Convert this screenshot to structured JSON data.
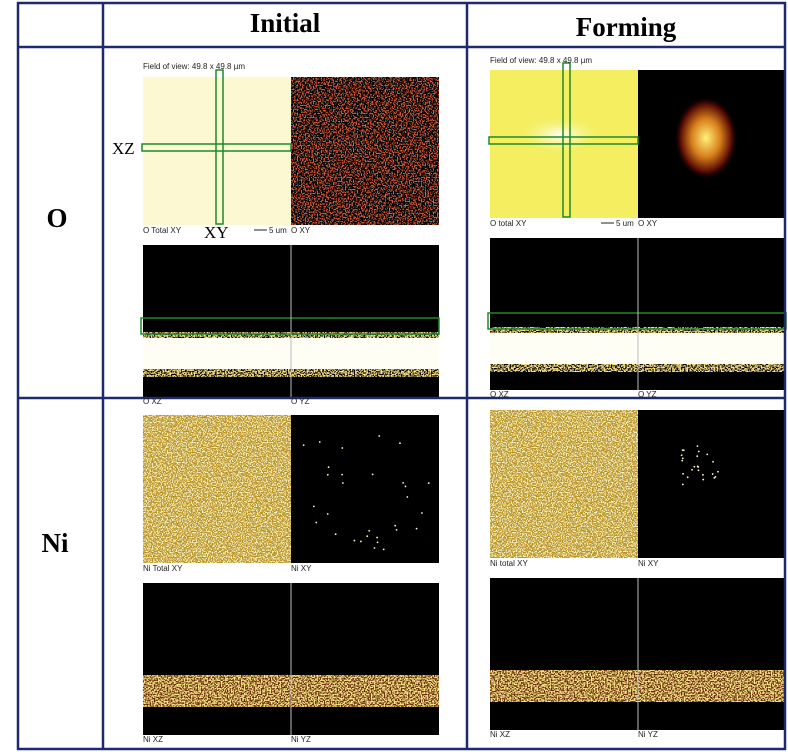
{
  "header": {
    "columns": [
      "Initial",
      "Forming"
    ]
  },
  "rows": [
    {
      "label": "O",
      "cells": [
        {
          "field_of_view": "Field of view: 49.8 x 49.8 µm",
          "markers": [
            "XZ",
            "XY"
          ],
          "total_label": "O Total XY",
          "scale": "5 um",
          "xy_label": "O XY",
          "xz_label": "O XZ",
          "yz_label": "O YZ"
        },
        {
          "field_of_view": "Field of view: 49.8 x 49.8 µm",
          "total_label": "O total XY",
          "scale": "5 um",
          "xy_label": "O XY",
          "xz_label": "O XZ",
          "yz_label": "O YZ"
        }
      ]
    },
    {
      "label": "Ni",
      "cells": [
        {
          "total_label": "Ni Total XY",
          "xy_label": "Ni XY",
          "xz_label": "Ni XZ",
          "yz_label": "Ni YZ"
        },
        {
          "total_label": "Ni total XY",
          "xy_label": "Ni XY",
          "xz_label": "Ni XZ",
          "yz_label": "Ni YZ"
        }
      ]
    }
  ]
}
